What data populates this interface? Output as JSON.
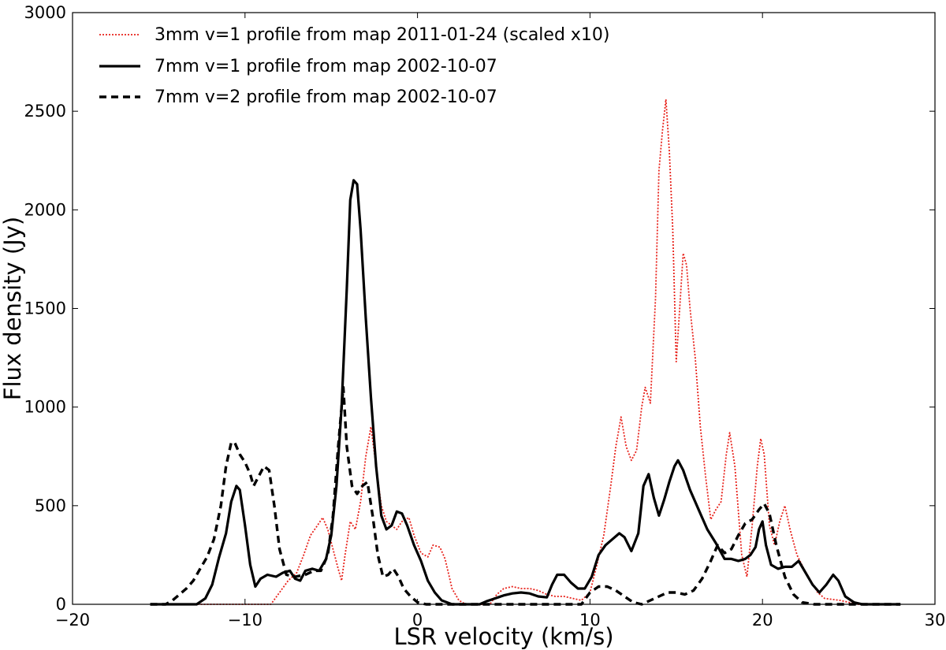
{
  "chart_data": {
    "type": "line",
    "title": "",
    "xlabel": "LSR velocity (km/s)",
    "ylabel": "Flux density (Jy)",
    "xlim": [
      -20,
      30
    ],
    "ylim": [
      0,
      3000
    ],
    "x_ticks": [
      -20,
      -10,
      0,
      10,
      20,
      30
    ],
    "y_ticks": [
      0,
      500,
      1000,
      1500,
      2000,
      2500,
      3000
    ],
    "grid": false,
    "legend_position": "top-left",
    "series": [
      {
        "name": "3mm v=1 profile from map 2011-01-24 (scaled x10)",
        "color": "#e8221b",
        "style": "dotted",
        "points": [
          [
            -15.5,
            0
          ],
          [
            -8.5,
            0
          ],
          [
            -8,
            60
          ],
          [
            -7.5,
            120
          ],
          [
            -7,
            160
          ],
          [
            -6.6,
            250
          ],
          [
            -6.2,
            350
          ],
          [
            -5.8,
            400
          ],
          [
            -5.5,
            440
          ],
          [
            -5.2,
            380
          ],
          [
            -4.9,
            280
          ],
          [
            -4.6,
            180
          ],
          [
            -4.4,
            120
          ],
          [
            -4.2,
            250
          ],
          [
            -3.9,
            420
          ],
          [
            -3.6,
            380
          ],
          [
            -3.3,
            520
          ],
          [
            -3.0,
            750
          ],
          [
            -2.7,
            900
          ],
          [
            -2.4,
            700
          ],
          [
            -2.1,
            500
          ],
          [
            -1.8,
            420
          ],
          [
            -1.5,
            400
          ],
          [
            -1.2,
            380
          ],
          [
            -0.9,
            420
          ],
          [
            -0.5,
            440
          ],
          [
            -0.2,
            350
          ],
          [
            0.2,
            260
          ],
          [
            0.6,
            240
          ],
          [
            0.9,
            300
          ],
          [
            1.3,
            290
          ],
          [
            1.6,
            230
          ],
          [
            2.0,
            80
          ],
          [
            2.4,
            20
          ],
          [
            2.8,
            0
          ],
          [
            4.2,
            0
          ],
          [
            4.6,
            50
          ],
          [
            5.0,
            80
          ],
          [
            5.5,
            90
          ],
          [
            6.0,
            80
          ],
          [
            6.5,
            80
          ],
          [
            7.0,
            70
          ],
          [
            7.5,
            50
          ],
          [
            8.0,
            40
          ],
          [
            8.5,
            40
          ],
          [
            9.0,
            30
          ],
          [
            9.5,
            20
          ],
          [
            10.0,
            60
          ],
          [
            10.4,
            200
          ],
          [
            10.8,
            350
          ],
          [
            11.2,
            600
          ],
          [
            11.5,
            800
          ],
          [
            11.8,
            950
          ],
          [
            12.1,
            800
          ],
          [
            12.4,
            730
          ],
          [
            12.7,
            780
          ],
          [
            13.0,
            1000
          ],
          [
            13.2,
            1100
          ],
          [
            13.5,
            1020
          ],
          [
            13.8,
            1550
          ],
          [
            14.0,
            2200
          ],
          [
            14.2,
            2400
          ],
          [
            14.4,
            2560
          ],
          [
            14.6,
            2300
          ],
          [
            14.8,
            1900
          ],
          [
            15.0,
            1230
          ],
          [
            15.2,
            1500
          ],
          [
            15.4,
            1780
          ],
          [
            15.6,
            1720
          ],
          [
            15.8,
            1500
          ],
          [
            16.1,
            1250
          ],
          [
            16.4,
            900
          ],
          [
            16.7,
            650
          ],
          [
            17.0,
            430
          ],
          [
            17.3,
            480
          ],
          [
            17.6,
            520
          ],
          [
            17.9,
            760
          ],
          [
            18.1,
            870
          ],
          [
            18.4,
            700
          ],
          [
            18.8,
            250
          ],
          [
            19.1,
            140
          ],
          [
            19.4,
            400
          ],
          [
            19.7,
            700
          ],
          [
            19.9,
            840
          ],
          [
            20.1,
            760
          ],
          [
            20.4,
            400
          ],
          [
            20.7,
            300
          ],
          [
            21.0,
            420
          ],
          [
            21.3,
            500
          ],
          [
            21.6,
            380
          ],
          [
            22.0,
            250
          ],
          [
            22.4,
            180
          ],
          [
            22.8,
            120
          ],
          [
            23.2,
            60
          ],
          [
            23.6,
            30
          ],
          [
            24.5,
            20
          ],
          [
            25.5,
            0
          ],
          [
            28,
            0
          ]
        ]
      },
      {
        "name": "7mm v=1 profile from map 2002-10-07",
        "color": "#000000",
        "style": "solid",
        "points": [
          [
            -15.5,
            0
          ],
          [
            -12.8,
            0
          ],
          [
            -12.3,
            30
          ],
          [
            -11.9,
            100
          ],
          [
            -11.5,
            240
          ],
          [
            -11.1,
            360
          ],
          [
            -10.8,
            520
          ],
          [
            -10.5,
            600
          ],
          [
            -10.3,
            580
          ],
          [
            -10.0,
            400
          ],
          [
            -9.7,
            200
          ],
          [
            -9.4,
            90
          ],
          [
            -9.1,
            130
          ],
          [
            -8.7,
            150
          ],
          [
            -8.2,
            140
          ],
          [
            -7.8,
            160
          ],
          [
            -7.4,
            170
          ],
          [
            -7.1,
            130
          ],
          [
            -6.8,
            120
          ],
          [
            -6.5,
            170
          ],
          [
            -6.1,
            180
          ],
          [
            -5.7,
            170
          ],
          [
            -5.3,
            230
          ],
          [
            -5.0,
            350
          ],
          [
            -4.7,
            600
          ],
          [
            -4.4,
            1000
          ],
          [
            -4.1,
            1600
          ],
          [
            -3.9,
            2050
          ],
          [
            -3.7,
            2150
          ],
          [
            -3.5,
            2130
          ],
          [
            -3.3,
            1900
          ],
          [
            -3.0,
            1450
          ],
          [
            -2.7,
            1050
          ],
          [
            -2.4,
            700
          ],
          [
            -2.1,
            450
          ],
          [
            -1.8,
            380
          ],
          [
            -1.5,
            400
          ],
          [
            -1.2,
            470
          ],
          [
            -0.9,
            460
          ],
          [
            -0.6,
            400
          ],
          [
            -0.2,
            300
          ],
          [
            0.2,
            220
          ],
          [
            0.6,
            120
          ],
          [
            1.0,
            60
          ],
          [
            1.4,
            20
          ],
          [
            2.0,
            0
          ],
          [
            3.6,
            0
          ],
          [
            4.0,
            15
          ],
          [
            4.5,
            30
          ],
          [
            5.0,
            45
          ],
          [
            5.5,
            55
          ],
          [
            6.0,
            60
          ],
          [
            6.5,
            55
          ],
          [
            7.0,
            40
          ],
          [
            7.5,
            35
          ],
          [
            7.8,
            100
          ],
          [
            8.1,
            150
          ],
          [
            8.5,
            150
          ],
          [
            8.9,
            110
          ],
          [
            9.3,
            80
          ],
          [
            9.7,
            80
          ],
          [
            10.1,
            140
          ],
          [
            10.5,
            250
          ],
          [
            10.9,
            300
          ],
          [
            11.3,
            330
          ],
          [
            11.7,
            360
          ],
          [
            12.0,
            340
          ],
          [
            12.4,
            270
          ],
          [
            12.8,
            360
          ],
          [
            13.1,
            600
          ],
          [
            13.4,
            660
          ],
          [
            13.7,
            540
          ],
          [
            14.0,
            450
          ],
          [
            14.3,
            530
          ],
          [
            14.6,
            620
          ],
          [
            14.9,
            700
          ],
          [
            15.1,
            730
          ],
          [
            15.4,
            680
          ],
          [
            15.8,
            580
          ],
          [
            16.3,
            480
          ],
          [
            16.8,
            380
          ],
          [
            17.3,
            310
          ],
          [
            17.8,
            230
          ],
          [
            18.2,
            230
          ],
          [
            18.6,
            220
          ],
          [
            19.0,
            230
          ],
          [
            19.3,
            250
          ],
          [
            19.6,
            290
          ],
          [
            19.8,
            380
          ],
          [
            20.0,
            420
          ],
          [
            20.2,
            300
          ],
          [
            20.5,
            200
          ],
          [
            20.9,
            180
          ],
          [
            21.3,
            190
          ],
          [
            21.7,
            190
          ],
          [
            22.1,
            220
          ],
          [
            22.5,
            160
          ],
          [
            22.9,
            100
          ],
          [
            23.3,
            60
          ],
          [
            23.7,
            100
          ],
          [
            24.1,
            150
          ],
          [
            24.4,
            120
          ],
          [
            24.8,
            40
          ],
          [
            25.3,
            10
          ],
          [
            25.8,
            0
          ],
          [
            28,
            0
          ]
        ]
      },
      {
        "name": "7mm v=2 profile from map 2002-10-07",
        "color": "#000000",
        "style": "dashed",
        "points": [
          [
            -15.5,
            0
          ],
          [
            -14.6,
            0
          ],
          [
            -14.2,
            20
          ],
          [
            -13.8,
            50
          ],
          [
            -13.4,
            80
          ],
          [
            -13.0,
            120
          ],
          [
            -12.6,
            180
          ],
          [
            -12.2,
            240
          ],
          [
            -11.8,
            330
          ],
          [
            -11.4,
            500
          ],
          [
            -11.1,
            700
          ],
          [
            -10.8,
            820
          ],
          [
            -10.6,
            820
          ],
          [
            -10.3,
            760
          ],
          [
            -10.0,
            720
          ],
          [
            -9.7,
            660
          ],
          [
            -9.5,
            600
          ],
          [
            -9.2,
            650
          ],
          [
            -8.9,
            700
          ],
          [
            -8.6,
            680
          ],
          [
            -8.3,
            500
          ],
          [
            -8.0,
            280
          ],
          [
            -7.6,
            150
          ],
          [
            -7.1,
            140
          ],
          [
            -6.5,
            150
          ],
          [
            -6.0,
            170
          ],
          [
            -5.6,
            170
          ],
          [
            -5.2,
            250
          ],
          [
            -4.9,
            450
          ],
          [
            -4.6,
            800
          ],
          [
            -4.3,
            1100
          ],
          [
            -4.1,
            800
          ],
          [
            -3.8,
            600
          ],
          [
            -3.5,
            560
          ],
          [
            -3.2,
            600
          ],
          [
            -2.9,
            620
          ],
          [
            -2.6,
            450
          ],
          [
            -2.3,
            250
          ],
          [
            -2.0,
            140
          ],
          [
            -1.7,
            150
          ],
          [
            -1.4,
            180
          ],
          [
            -1.1,
            140
          ],
          [
            -0.8,
            80
          ],
          [
            -0.4,
            40
          ],
          [
            0.0,
            10
          ],
          [
            0.5,
            0
          ],
          [
            9.5,
            0
          ],
          [
            10.0,
            60
          ],
          [
            10.5,
            90
          ],
          [
            11.0,
            90
          ],
          [
            11.5,
            70
          ],
          [
            12.0,
            40
          ],
          [
            12.5,
            10
          ],
          [
            13.0,
            0
          ],
          [
            13.5,
            20
          ],
          [
            14.0,
            40
          ],
          [
            14.5,
            60
          ],
          [
            15.0,
            60
          ],
          [
            15.5,
            50
          ],
          [
            16.0,
            70
          ],
          [
            16.5,
            130
          ],
          [
            17.0,
            220
          ],
          [
            17.4,
            300
          ],
          [
            17.8,
            260
          ],
          [
            18.2,
            280
          ],
          [
            18.6,
            350
          ],
          [
            19.0,
            410
          ],
          [
            19.4,
            430
          ],
          [
            19.8,
            480
          ],
          [
            20.1,
            510
          ],
          [
            20.4,
            460
          ],
          [
            20.8,
            300
          ],
          [
            21.3,
            140
          ],
          [
            21.8,
            50
          ],
          [
            22.3,
            10
          ],
          [
            23.0,
            0
          ],
          [
            28,
            0
          ]
        ]
      }
    ]
  }
}
